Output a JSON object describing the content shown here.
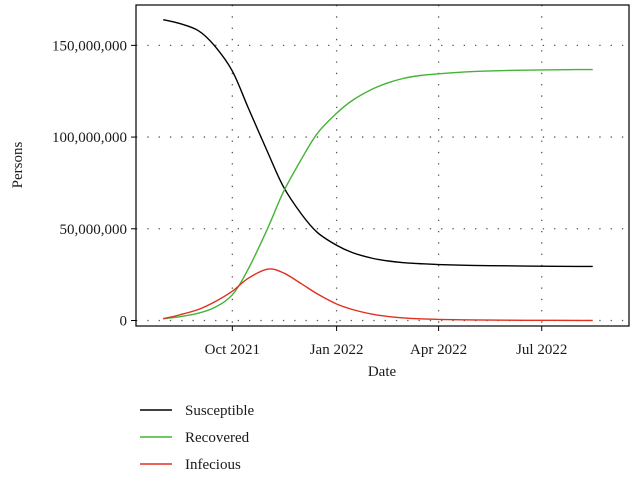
{
  "chart_data": {
    "type": "line",
    "title": "",
    "xlabel": "Date",
    "ylabel": "Persons",
    "x_ticks": [
      {
        "date": "2021-10-01",
        "label": "Oct 2021"
      },
      {
        "date": "2022-01-01",
        "label": "Jan 2022"
      },
      {
        "date": "2022-04-01",
        "label": "Apr 2022"
      },
      {
        "date": "2022-07-01",
        "label": "Jul 2022"
      }
    ],
    "y_ticks": [
      {
        "value": 0,
        "label": "0"
      },
      {
        "value": 50000000,
        "label": "50,000,000"
      },
      {
        "value": 100000000,
        "label": "100,000,000"
      },
      {
        "value": 150000000,
        "label": "150,000,000"
      }
    ],
    "xlim": [
      "2021-07-08",
      "2022-09-16"
    ],
    "ylim": [
      -3000000,
      172000000
    ],
    "grid": true,
    "legend_position": "below",
    "x": [
      "2021-08-01",
      "2021-08-15",
      "2021-09-01",
      "2021-09-15",
      "2021-10-01",
      "2021-10-15",
      "2021-11-01",
      "2021-11-15",
      "2021-12-01",
      "2021-12-15",
      "2022-01-01",
      "2022-01-15",
      "2022-02-01",
      "2022-02-15",
      "2022-03-01",
      "2022-03-15",
      "2022-04-01",
      "2022-05-01",
      "2022-06-01",
      "2022-07-01",
      "2022-08-01",
      "2022-08-15"
    ],
    "series": [
      {
        "name": "Susceptible",
        "color": "#000000",
        "values": [
          164000000,
          162000000,
          158000000,
          150000000,
          136000000,
          116000000,
          92000000,
          73000000,
          58000000,
          48000000,
          41000000,
          37000000,
          34000000,
          32500000,
          31500000,
          31000000,
          30500000,
          30000000,
          29800000,
          29600000,
          29500000,
          29500000
        ]
      },
      {
        "name": "Recovered",
        "color": "#44b336",
        "values": [
          1000000,
          2000000,
          4000000,
          7000000,
          14000000,
          28000000,
          50000000,
          70000000,
          88000000,
          102000000,
          113000000,
          120000000,
          126000000,
          129500000,
          132000000,
          133500000,
          134500000,
          135700000,
          136300000,
          136600000,
          136800000,
          136800000
        ]
      },
      {
        "name": "Infecious",
        "color": "#e03020",
        "values": [
          1000000,
          3000000,
          6000000,
          10000000,
          16000000,
          23000000,
          28000000,
          26000000,
          20000000,
          14500000,
          9000000,
          6000000,
          3500000,
          2200000,
          1400000,
          900000,
          600000,
          300000,
          150000,
          100000,
          50000,
          50000
        ]
      }
    ]
  }
}
